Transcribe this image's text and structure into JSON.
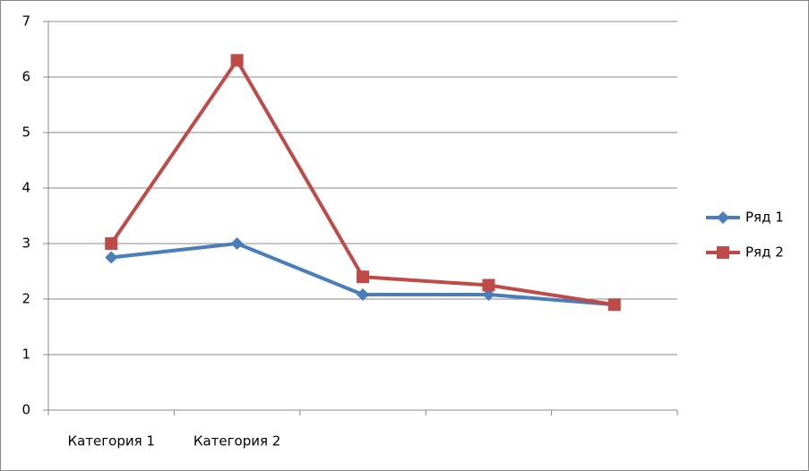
{
  "chart_data": {
    "type": "line",
    "categories": [
      "Категория 1",
      "Категория 2",
      null,
      null,
      null
    ],
    "series": [
      {
        "name": "Ряд 1",
        "color": "#4a7ebb",
        "marker": "diamond",
        "values": [
          2.75,
          3.0,
          2.08,
          2.08,
          1.9
        ]
      },
      {
        "name": "Ряд 2",
        "color": "#be4b48",
        "marker": "square",
        "values": [
          3.0,
          6.3,
          2.4,
          2.25,
          1.9
        ]
      }
    ],
    "ylim": [
      0,
      7
    ],
    "yticks": [
      0,
      1,
      2,
      3,
      4,
      5,
      6,
      7
    ],
    "grid": true,
    "legend": "right"
  }
}
